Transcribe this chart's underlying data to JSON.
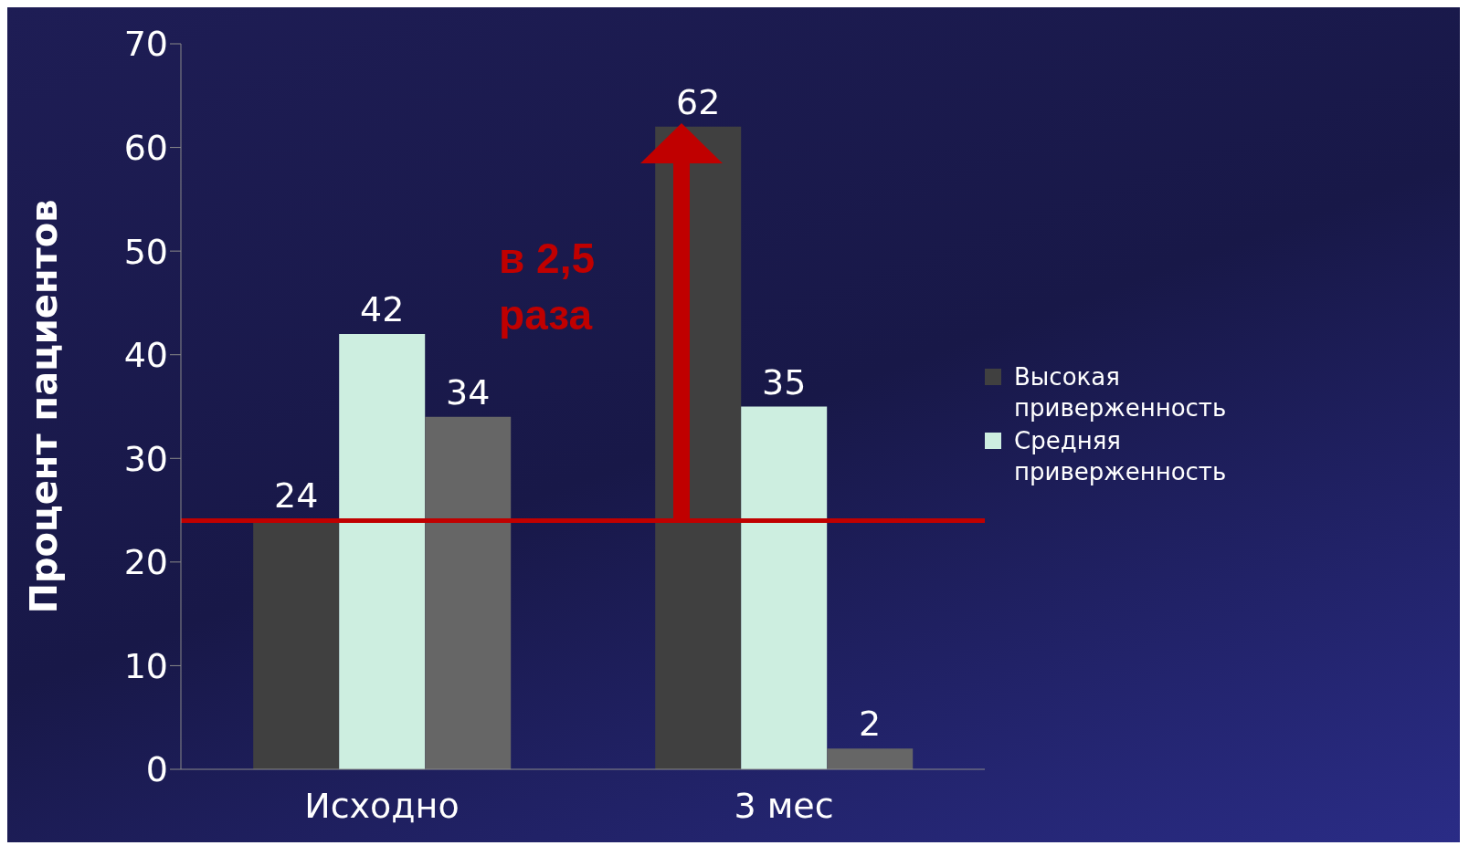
{
  "chart_data": {
    "type": "bar",
    "ylabel": "Процент пациентов",
    "categories": [
      "Исходно",
      "3 мес"
    ],
    "series": [
      {
        "name": "Высокая приверженность",
        "color": "#404040",
        "values": [
          24,
          62
        ]
      },
      {
        "name": "Средняя приверженность",
        "color": "#cdeee0",
        "values": [
          42,
          35
        ]
      },
      {
        "color": "#666666",
        "values": [
          34,
          2
        ]
      }
    ],
    "ylim": [
      0,
      70
    ],
    "yticks": [
      0,
      10,
      20,
      30,
      40,
      50,
      60,
      70
    ],
    "legend": "right",
    "data_labels": true,
    "ref_lines": [
      {
        "axis": "y",
        "value": 24,
        "color": "#c00000"
      }
    ],
    "annotations": [
      "в 2,5 раза"
    ]
  }
}
